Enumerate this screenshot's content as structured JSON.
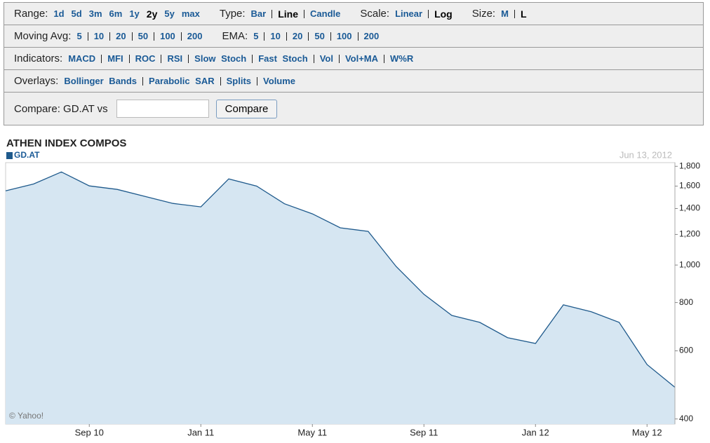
{
  "controls": {
    "rows": [
      {
        "groups": [
          {
            "label": "Range:",
            "items": [
              "1d",
              "5d",
              "3m",
              "6m",
              "1y",
              "2y",
              "5y",
              "max"
            ],
            "selected": 5,
            "separated": false
          },
          {
            "label": "Type:",
            "items": [
              "Bar",
              "Line",
              "Candle"
            ],
            "selected": 1,
            "separated": true
          },
          {
            "label": "Scale:",
            "items": [
              "Linear",
              "Log"
            ],
            "selected": 1,
            "separated": true
          },
          {
            "label": "Size:",
            "items": [
              "M",
              "L"
            ],
            "selected": 1,
            "separated": true
          }
        ]
      },
      {
        "groups": [
          {
            "label": "Moving Avg:",
            "items": [
              "5",
              "10",
              "20",
              "50",
              "100",
              "200"
            ],
            "separated": true
          },
          {
            "label": "EMA:",
            "items": [
              "5",
              "10",
              "20",
              "50",
              "100",
              "200"
            ],
            "separated": true
          }
        ]
      },
      {
        "groups": [
          {
            "label": "Indicators:",
            "items": [
              "MACD",
              "MFI",
              "ROC",
              "RSI",
              "Slow Stoch",
              "Fast Stoch",
              "Vol",
              "Vol+MA",
              "W%R"
            ],
            "separated": true
          }
        ]
      },
      {
        "groups": [
          {
            "label": "Overlays:",
            "items": [
              "Bollinger Bands",
              "Parabolic SAR",
              "Splits",
              "Volume"
            ],
            "separated": true
          }
        ]
      }
    ],
    "compare": {
      "label": "Compare: GD.AT vs",
      "button": "Compare"
    }
  },
  "chart_data": {
    "type": "area",
    "title": "ATHEN INDEX COMPOS",
    "date_label": "Jun 13, 2012",
    "credit": "© Yahoo!",
    "categories": [
      null,
      null,
      null,
      "Sep 10",
      null,
      null,
      null,
      "Jan 11",
      null,
      null,
      null,
      "May 11",
      null,
      null,
      null,
      "Sep 11",
      null,
      null,
      null,
      "Jan 12",
      null,
      null,
      null,
      "May 12",
      null
    ],
    "series": [
      {
        "name": "GD.AT",
        "color": "#1f5a8c",
        "fill": "#d6e6f2",
        "values": [
          1556,
          1620,
          1741,
          1602,
          1569,
          1505,
          1443,
          1414,
          1670,
          1600,
          1440,
          1356,
          1248,
          1222,
          992,
          840,
          741,
          711,
          649,
          627,
          789,
          757,
          711,
          553,
          483
        ]
      }
    ],
    "log_scale": true,
    "ylim": [
      388,
      1840
    ],
    "yticks": [
      400,
      600,
      800,
      {
        "value": 1000,
        "label": "1,000"
      },
      {
        "value": 1200,
        "label": "1,200"
      },
      {
        "value": 1400,
        "label": "1,400"
      },
      {
        "value": 1600,
        "label": "1,600"
      },
      {
        "value": 1800,
        "label": "1,800"
      }
    ]
  }
}
